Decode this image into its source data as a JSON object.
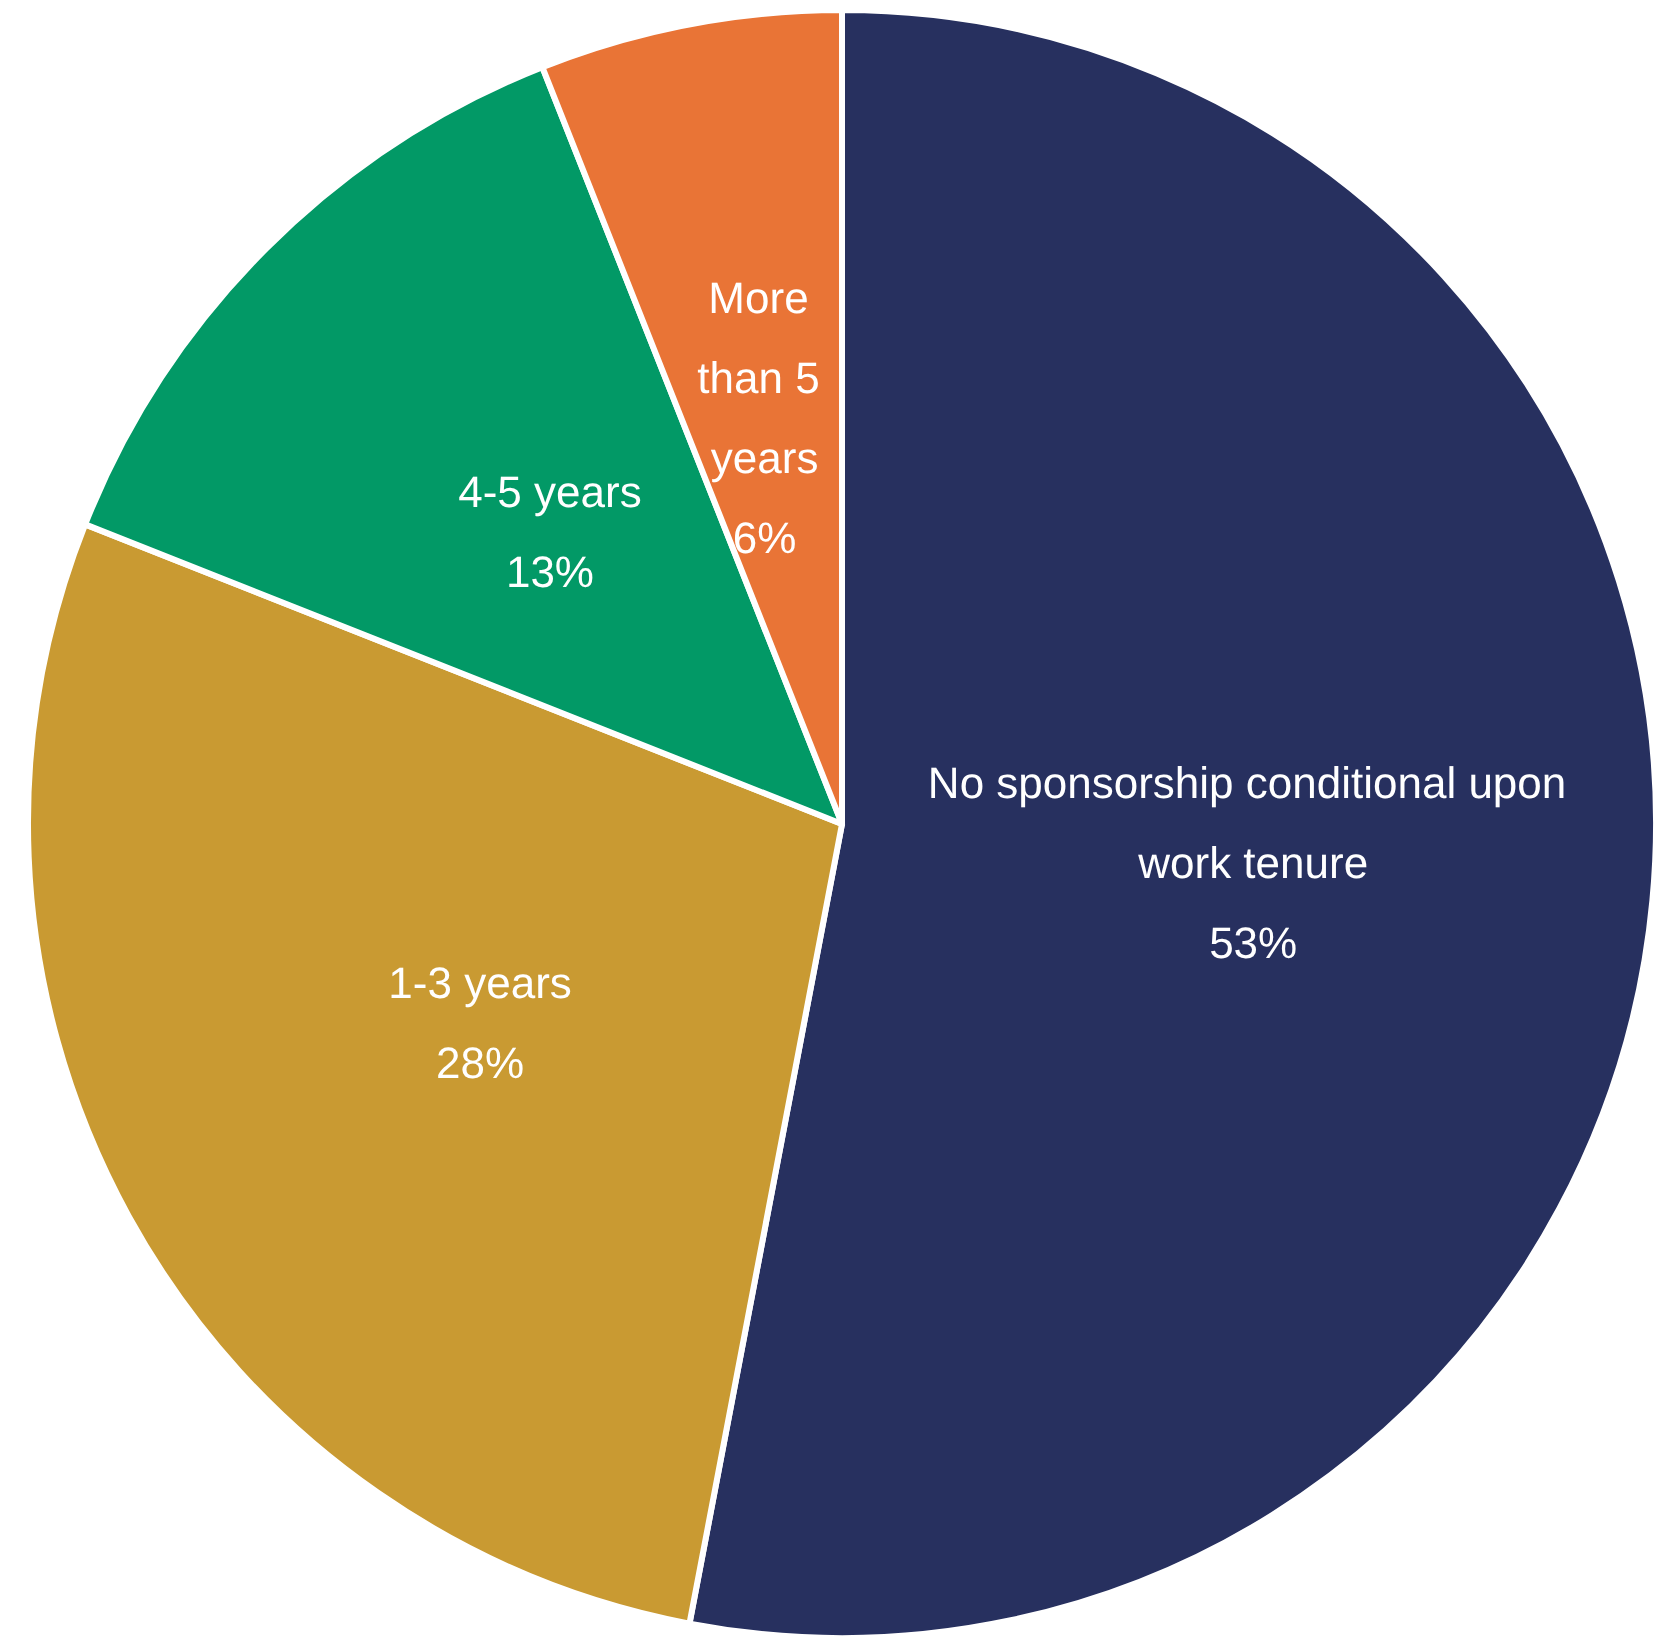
{
  "chart_data": {
    "type": "pie",
    "categories": [
      "No sponsorship conditional upon work tenure",
      "1-3 years",
      "4-5 years",
      "More than 5 years"
    ],
    "values": [
      53,
      28,
      13,
      6
    ],
    "value_labels": [
      "53%",
      "28%",
      "13%",
      "6%"
    ],
    "colors": [
      "#27305f",
      "#c99a32",
      "#029966",
      "#e97436"
    ]
  }
}
